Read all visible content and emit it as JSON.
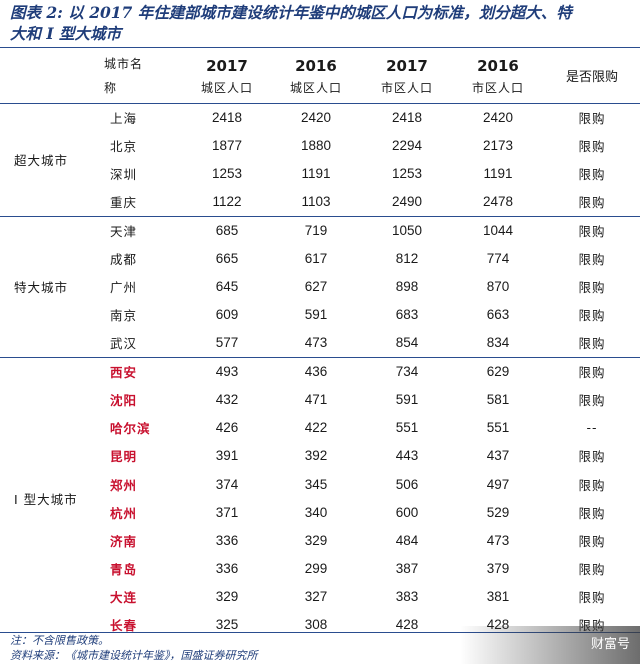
{
  "title": {
    "line1": "图表 2:  以 2017 年住建部城市建设统计年鉴中的城区人口为标准，划分超大、特",
    "line2": "大和 I  型大城市"
  },
  "header": {
    "city_name_line1": "城市名",
    "city_name_line2": "称",
    "col_year_1": "2017",
    "col_sub_1": "城区人口",
    "col_year_2": "2016",
    "col_sub_2": "城区人口",
    "col_year_3": "2017",
    "col_sub_3": "市区人口",
    "col_year_4": "2016",
    "col_sub_4": "市区人口",
    "col_limit": "是否限购"
  },
  "groups": [
    {
      "category": "超大城市",
      "rows": [
        {
          "city": "上海",
          "red": false,
          "v1": "2418",
          "v2": "2420",
          "v3": "2418",
          "v4": "2420",
          "limit": "限购"
        },
        {
          "city": "北京",
          "red": false,
          "v1": "1877",
          "v2": "1880",
          "v3": "2294",
          "v4": "2173",
          "limit": "限购"
        },
        {
          "city": "深圳",
          "red": false,
          "v1": "1253",
          "v2": "1191",
          "v3": "1253",
          "v4": "1191",
          "limit": "限购"
        },
        {
          "city": "重庆",
          "red": false,
          "v1": "1122",
          "v2": "1103",
          "v3": "2490",
          "v4": "2478",
          "limit": "限购"
        }
      ]
    },
    {
      "category": "特大城市",
      "rows": [
        {
          "city": "天津",
          "red": false,
          "v1": "685",
          "v2": "719",
          "v3": "1050",
          "v4": "1044",
          "limit": "限购"
        },
        {
          "city": "成都",
          "red": false,
          "v1": "665",
          "v2": "617",
          "v3": "812",
          "v4": "774",
          "limit": "限购"
        },
        {
          "city": "广州",
          "red": false,
          "v1": "645",
          "v2": "627",
          "v3": "898",
          "v4": "870",
          "limit": "限购"
        },
        {
          "city": "南京",
          "red": false,
          "v1": "609",
          "v2": "591",
          "v3": "683",
          "v4": "663",
          "limit": "限购"
        },
        {
          "city": "武汉",
          "red": false,
          "v1": "577",
          "v2": "473",
          "v3": "854",
          "v4": "834",
          "limit": "限购"
        }
      ]
    },
    {
      "category": "I 型大城市",
      "rows": [
        {
          "city": "西安",
          "red": true,
          "v1": "493",
          "v2": "436",
          "v3": "734",
          "v4": "629",
          "limit": "限购"
        },
        {
          "city": "沈阳",
          "red": true,
          "v1": "432",
          "v2": "471",
          "v3": "591",
          "v4": "581",
          "limit": "限购"
        },
        {
          "city": "哈尔滨",
          "red": true,
          "v1": "426",
          "v2": "422",
          "v3": "551",
          "v4": "551",
          "limit": "--"
        },
        {
          "city": "昆明",
          "red": true,
          "v1": "391",
          "v2": "392",
          "v3": "443",
          "v4": "437",
          "limit": "限购"
        },
        {
          "city": "郑州",
          "red": true,
          "v1": "374",
          "v2": "345",
          "v3": "506",
          "v4": "497",
          "limit": "限购"
        },
        {
          "city": "杭州",
          "red": true,
          "v1": "371",
          "v2": "340",
          "v3": "600",
          "v4": "529",
          "limit": "限购"
        },
        {
          "city": "济南",
          "red": true,
          "v1": "336",
          "v2": "329",
          "v3": "484",
          "v4": "473",
          "limit": "限购"
        },
        {
          "city": "青岛",
          "red": true,
          "v1": "336",
          "v2": "299",
          "v3": "387",
          "v4": "379",
          "limit": "限购"
        },
        {
          "city": "大连",
          "red": true,
          "v1": "329",
          "v2": "327",
          "v3": "383",
          "v4": "381",
          "limit": "限购"
        },
        {
          "city": "长春",
          "red": true,
          "v1": "325",
          "v2": "308",
          "v3": "428",
          "v4": "428",
          "limit": "限购"
        }
      ]
    }
  ],
  "footer": {
    "note": "注：不含限售政策。",
    "source": "资料来源：《城市建设统计年鉴》，国盛证券研究所"
  },
  "watermark": "财富号",
  "colors": {
    "title": "#1f3d7a",
    "rule": "#2a4d8f",
    "highlight_city": "#c8102e"
  }
}
